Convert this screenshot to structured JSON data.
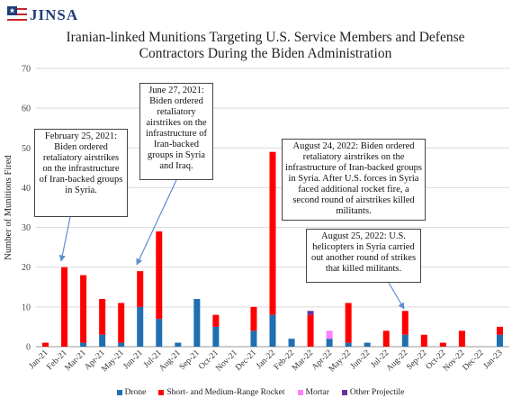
{
  "header": {
    "logo_text": "JINSA",
    "title_line1": "Iranian-linked Munitions Targeting U.S. Service Members and Defense",
    "title_line2": "Contractors During the Biden Administration"
  },
  "colors": {
    "drone": "#1f6fb2",
    "rocket": "#ff0000",
    "mortar": "#ff80ff",
    "other": "#6a2fa0",
    "brand": "#1f3c7a"
  },
  "annotations": {
    "feb": "February 25, 2021: Biden ordered retaliatory airstrikes on the infrastructure of Iran-backed groups in Syria.",
    "jun": "June 27, 2021: Biden ordered retaliatory airstrikes on the infrastructure of Iran-backed groups in Syria and Iraq.",
    "aug24": "August 24, 2022: Biden ordered retaliatory airstrikes on the infrastructure of Iran-backed groups in Syria. After U.S. forces in Syria faced additional rocket fire, a second round of airstrikes killed militants.",
    "aug25": "August 25, 2022: U.S. helicopters in Syria carried out another round of strikes that killed militants."
  },
  "chart_data": {
    "type": "bar",
    "stacked": true,
    "title": "Iranian-linked Munitions Targeting U.S. Service Members and Defense Contractors During the Biden Administration",
    "ylabel": "Number of Munitions Fired",
    "xlabel": "",
    "ylim": [
      0,
      70
    ],
    "yticks": [
      0,
      10,
      20,
      30,
      40,
      50,
      60,
      70
    ],
    "grid": true,
    "legend_position": "bottom",
    "categories": [
      "Jan-21",
      "Feb-21",
      "Mar-21",
      "Apr-21",
      "May-21",
      "Jun-21",
      "Jul-21",
      "Aug-21",
      "Sep-21",
      "Oct-21",
      "Nov-21",
      "Dec-21",
      "Jan-22",
      "Feb-22",
      "Mar-22",
      "Apr-22",
      "May-22",
      "Jun-22",
      "Jul-22",
      "Aug-22",
      "Sep-22",
      "Oct-22",
      "Nov-22",
      "Dec-22",
      "Jan-23"
    ],
    "series": [
      {
        "name": "Drone",
        "values": [
          0,
          0,
          1,
          3,
          1,
          10,
          7,
          1,
          12,
          5,
          0,
          4,
          8,
          2,
          0,
          2,
          1,
          1,
          0,
          3,
          0,
          0,
          0,
          0,
          3
        ]
      },
      {
        "name": "Short- and Medium-Range Rocket",
        "values": [
          1,
          20,
          17,
          9,
          10,
          9,
          22,
          0,
          0,
          3,
          0,
          6,
          41,
          0,
          8,
          0,
          10,
          0,
          4,
          6,
          3,
          1,
          4,
          0,
          2
        ]
      },
      {
        "name": "Mortar",
        "values": [
          0,
          0,
          0,
          0,
          0,
          0,
          0,
          0,
          0,
          0,
          0,
          0,
          0,
          0,
          0,
          2,
          0,
          0,
          0,
          0,
          0,
          0,
          0,
          0,
          0
        ]
      },
      {
        "name": "Other Projectile",
        "values": [
          0,
          0,
          0,
          0,
          0,
          0,
          0,
          0,
          0,
          0,
          0,
          0,
          0,
          0,
          1,
          0,
          0,
          0,
          0,
          0,
          0,
          0,
          0,
          0,
          0
        ]
      }
    ]
  }
}
